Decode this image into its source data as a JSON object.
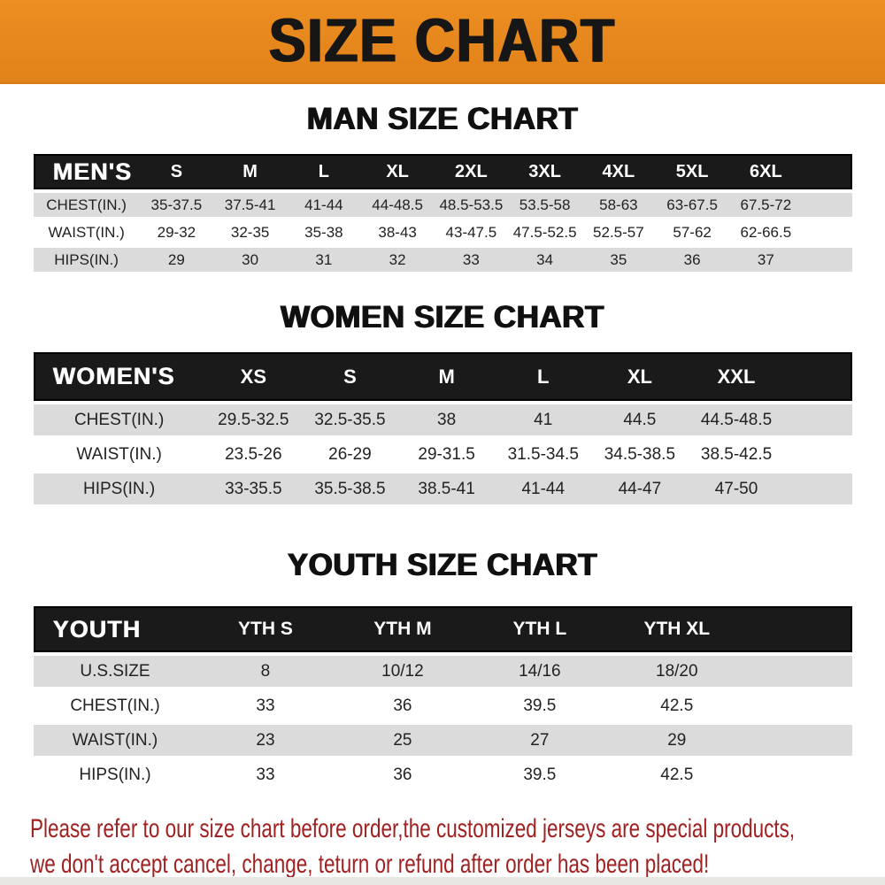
{
  "banner": {
    "title": "SIZE CHART",
    "bg_color": "#E8871E",
    "text_color": "#161616"
  },
  "sections": [
    {
      "heading": "MAN SIZE CHART",
      "label": "MEN'S",
      "columns": [
        "S",
        "M",
        "L",
        "XL",
        "2XL",
        "3XL",
        "4XL",
        "5XL",
        "6XL"
      ],
      "rows": [
        {
          "label": "CHEST(IN.)",
          "values": [
            "35-37.5",
            "37.5-41",
            "41-44",
            "44-48.5",
            "48.5-53.5",
            "53.5-58",
            "58-63",
            "63-67.5",
            "67.5-72"
          ]
        },
        {
          "label": "WAIST(IN.)",
          "values": [
            "29-32",
            "32-35",
            "35-38",
            "38-43",
            "43-47.5",
            "47.5-52.5",
            "52.5-57",
            "57-62",
            "62-66.5"
          ]
        },
        {
          "label": "HIPS(IN.)",
          "values": [
            "29",
            "30",
            "31",
            "32",
            "33",
            "34",
            "35",
            "36",
            "37"
          ]
        }
      ]
    },
    {
      "heading": "WOMEN SIZE CHART",
      "label": "WOMEN'S",
      "columns": [
        "XS",
        "S",
        "M",
        "L",
        "XL",
        "XXL"
      ],
      "rows": [
        {
          "label": "CHEST(IN.)",
          "values": [
            "29.5-32.5",
            "32.5-35.5",
            "38",
            "41",
            "44.5",
            "44.5-48.5"
          ]
        },
        {
          "label": "WAIST(IN.)",
          "values": [
            "23.5-26",
            "26-29",
            "29-31.5",
            "31.5-34.5",
            "34.5-38.5",
            "38.5-42.5"
          ]
        },
        {
          "label": "HIPS(IN.)",
          "values": [
            "33-35.5",
            "35.5-38.5",
            "38.5-41",
            "41-44",
            "44-47",
            "47-50"
          ]
        }
      ]
    },
    {
      "heading": "YOUTH SIZE CHART",
      "label": "YOUTH",
      "columns": [
        "YTH S",
        "YTH M",
        "YTH L",
        "YTH XL"
      ],
      "rows": [
        {
          "label": "U.S.SIZE",
          "values": [
            "8",
            "10/12",
            "14/16",
            "18/20"
          ]
        },
        {
          "label": "CHEST(IN.)",
          "values": [
            "33",
            "36",
            "39.5",
            "42.5"
          ]
        },
        {
          "label": "WAIST(IN.)",
          "values": [
            "23",
            "25",
            "27",
            "29"
          ]
        },
        {
          "label": "HIPS(IN.)",
          "values": [
            "33",
            "36",
            "39.5",
            "42.5"
          ]
        }
      ]
    }
  ],
  "table_style": {
    "header_bg": "#1A1A1A",
    "header_text": "#FFFFFF",
    "stripe_bg": "#DBDBDB",
    "row_bg": "#FFFFFF",
    "value_text": "#222222"
  },
  "disclaimer": {
    "lines": [
      "Please refer to our size chart before order,the customized jerseys are special products,",
      "we don't accept cancel, change, teturn or refund after order has been placed!"
    ],
    "color": "#A02121"
  }
}
